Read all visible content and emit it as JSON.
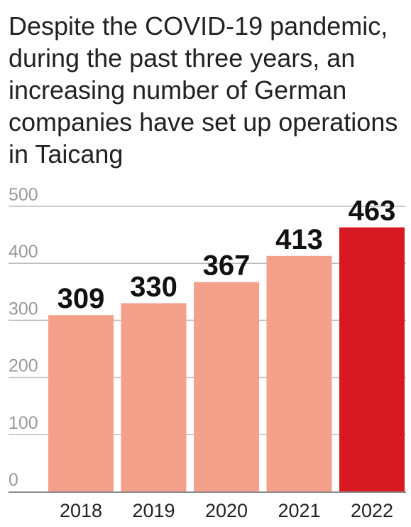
{
  "chart_data": {
    "type": "bar",
    "title": "Despite the COVID-19 pandemic, during the past three years, an increasing number of German companies have set up operations in Taicang",
    "categories": [
      "2018",
      "2019",
      "2020",
      "2021",
      "2022"
    ],
    "values": [
      309,
      330,
      367,
      413,
      463
    ],
    "value_labels": [
      "309",
      "330",
      "367",
      "413",
      "463"
    ],
    "xlabel": "",
    "ylabel": "",
    "ylim": [
      0,
      500
    ],
    "yticks": [
      0,
      100,
      200,
      300,
      400,
      500
    ],
    "ytick_labels": [
      "0",
      "100",
      "200",
      "300",
      "400",
      "500"
    ],
    "grid": true,
    "legend": "none",
    "colors": {
      "bar": "#f4a08b",
      "highlight_bar": "#d71921",
      "gridline": "#bdbdbd",
      "axis": "#666666"
    },
    "highlight_index": 4
  }
}
